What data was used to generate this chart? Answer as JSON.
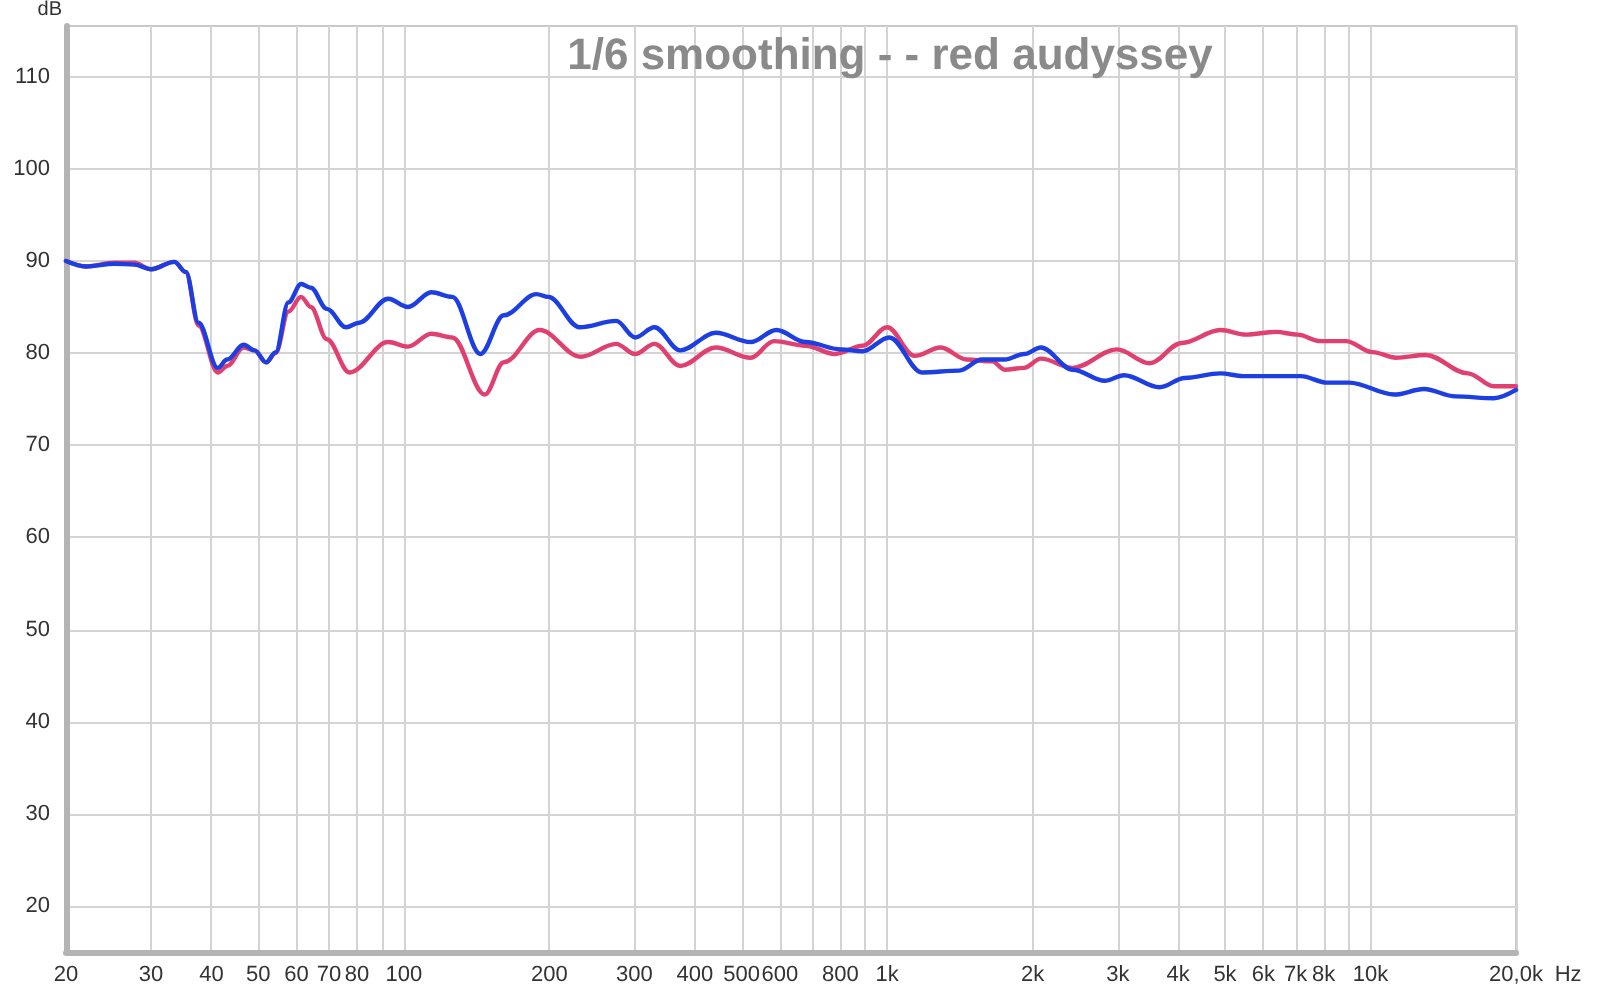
{
  "chart_data": {
    "type": "line",
    "title": "1/6 smoothing - - red audyssey",
    "xlabel": "Hz",
    "ylabel": "dB",
    "log": "x",
    "grid": true,
    "marker": "none",
    "xlim": [
      20,
      20000
    ],
    "ylim": [
      15,
      115.5
    ],
    "xticks": [
      20,
      30,
      40,
      50,
      60,
      70,
      80,
      {
        "value": 90,
        "label": null
      },
      100,
      200,
      300,
      400,
      500,
      600,
      {
        "value": 700,
        "label": null
      },
      800,
      {
        "value": 900,
        "label": null
      },
      {
        "value": 1000,
        "label": "1k"
      },
      {
        "value": 2000,
        "label": "2k"
      },
      {
        "value": 3000,
        "label": "3k"
      },
      {
        "value": 4000,
        "label": "4k"
      },
      {
        "value": 5000,
        "label": "5k"
      },
      {
        "value": 6000,
        "label": "6k"
      },
      {
        "value": 7000,
        "label": "7k"
      },
      {
        "value": 8000,
        "label": "8k"
      },
      {
        "value": 9000,
        "label": null
      },
      {
        "value": 10000,
        "label": "10k"
      },
      {
        "value": 20000,
        "label": "20,0k"
      }
    ],
    "yticks": [
      20,
      30,
      40,
      50,
      60,
      70,
      80,
      90,
      100,
      110
    ],
    "series": [
      {
        "color": "#e0406f",
        "x": [
          20,
          22,
          25.2,
          27.7,
          30,
          33.5,
          35.4,
          37.6,
          41.2,
          43.1,
          46.6,
          49.1,
          51.9,
          54.3,
          57.7,
          61.3,
          64.2,
          69.3,
          77.2,
          92.8,
          102,
          114,
          126,
          147,
          161,
          191,
          232,
          275,
          301,
          330,
          373,
          442,
          522,
          583,
          678,
          780,
          890,
          1000,
          1140,
          1290,
          1460,
          1650,
          1750,
          1920,
          2080,
          2420,
          2990,
          3490,
          4070,
          4890,
          5530,
          6360,
          7070,
          7870,
          8890,
          10100,
          11300,
          13000,
          15900,
          18000,
          20000
        ],
        "values": [
          90.0,
          89.4,
          89.8,
          89.8,
          89.1,
          89.9,
          88.8,
          83.0,
          77.9,
          78.6,
          80.6,
          80.3,
          79.0,
          80.0,
          84.5,
          86.1,
          85.0,
          81.5,
          77.9,
          81.2,
          80.7,
          82.1,
          81.7,
          75.5,
          79.0,
          82.5,
          79.6,
          81.0,
          79.9,
          81.0,
          78.6,
          80.6,
          79.5,
          81.3,
          80.8,
          79.9,
          80.8,
          82.8,
          79.7,
          80.6,
          79.3,
          79.1,
          78.2,
          78.4,
          79.4,
          78.4,
          80.4,
          78.9,
          81.1,
          82.5,
          82.0,
          82.3,
          82.0,
          81.3,
          81.3,
          80.1,
          79.5,
          79.8,
          77.8,
          76.4,
          76.4
        ]
      },
      {
        "color": "#1d3ee0",
        "x": [
          20,
          22,
          25.2,
          27.7,
          30,
          33.5,
          35.4,
          37.6,
          41.2,
          43.1,
          46.6,
          49.1,
          51.9,
          54.3,
          57.7,
          61.3,
          64.2,
          69.3,
          75.9,
          80.8,
          92.8,
          102,
          114,
          126,
          144,
          161,
          188,
          199,
          231,
          275,
          301,
          330,
          373,
          442,
          522,
          590,
          678,
          802,
          890,
          1010,
          1180,
          1410,
          1570,
          1750,
          1920,
          2080,
          2420,
          2820,
          3090,
          3660,
          4130,
          4890,
          5450,
          7180,
          8120,
          9030,
          11200,
          12900,
          15000,
          18000,
          20000
        ],
        "values": [
          90.0,
          89.4,
          89.7,
          89.6,
          89.1,
          89.9,
          88.8,
          83.3,
          78.4,
          79.3,
          80.9,
          80.3,
          79.0,
          80.1,
          85.5,
          87.5,
          87.1,
          84.8,
          82.8,
          83.3,
          85.9,
          85.0,
          86.6,
          86.1,
          79.9,
          84.1,
          86.4,
          86.1,
          82.8,
          83.5,
          81.7,
          82.8,
          80.3,
          82.2,
          81.2,
          82.5,
          81.2,
          80.4,
          80.2,
          81.7,
          77.9,
          78.1,
          79.3,
          79.3,
          79.9,
          80.6,
          78.2,
          77.0,
          77.6,
          76.3,
          77.3,
          77.8,
          77.5,
          77.5,
          76.8,
          76.8,
          75.5,
          76.1,
          75.3,
          75.1,
          76.0
        ]
      }
    ]
  }
}
